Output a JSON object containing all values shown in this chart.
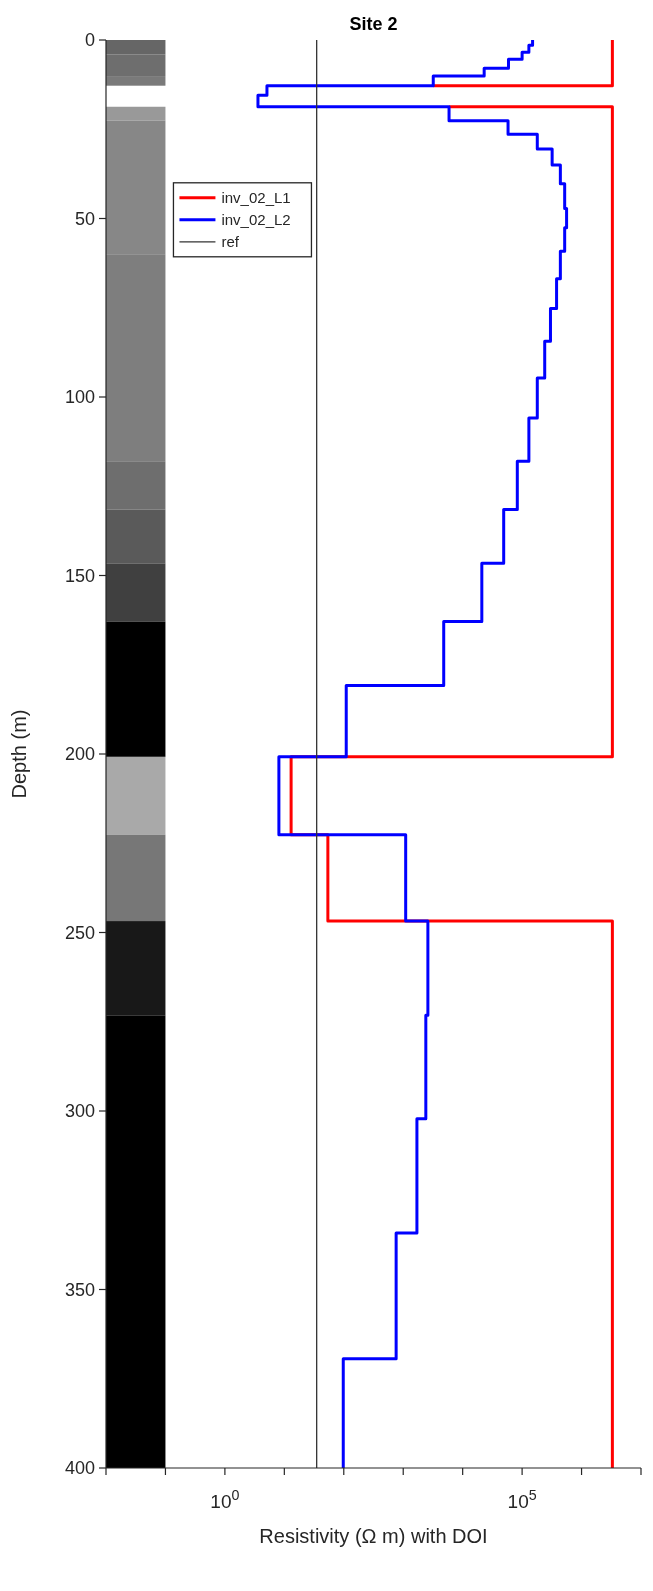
{
  "chart_data": {
    "type": "line",
    "title": "Site 2",
    "xlabel": "Resistivity (Ω m) with DOI",
    "ylabel": "Depth (m)",
    "log": "x",
    "xlim": [
      0.01,
      10000000
    ],
    "xticks": [
      {
        "value": 0.01,
        "label": null
      },
      {
        "value": 0.1,
        "label": null
      },
      {
        "value": 1,
        "label": "10$^{0}$"
      },
      {
        "value": 10,
        "label": null
      },
      {
        "value": 100,
        "label": null
      },
      {
        "value": 1000,
        "label": null
      },
      {
        "value": 10000,
        "label": null
      },
      {
        "value": 100000,
        "label": "10$^{5}$"
      },
      {
        "value": 1000000,
        "label": null
      },
      {
        "value": 10000000,
        "label": null
      }
    ],
    "ylim": [
      400,
      0
    ],
    "yticks": [
      0,
      50,
      100,
      150,
      200,
      250,
      300,
      350,
      400
    ],
    "grid": false,
    "legend": "top left",
    "line_style": "solid",
    "marker": "none",
    "series": [
      {
        "name": "inv_02_L1",
        "color": "#ff0000",
        "x": [
          3300000,
          3300000,
          3200,
          null,
          5900,
          3300000,
          3300000,
          13,
          13,
          54,
          54,
          3300000,
          3300000
        ],
        "values": [
          0,
          12.8,
          12.8,
          null,
          18.7,
          18.7,
          200.8,
          200.8,
          222.6,
          222.6,
          246.8,
          246.8,
          400
        ]
      },
      {
        "name": "inv_02_L2",
        "color": "#0000ff",
        "x": [
          150000,
          150000,
          130000,
          130000,
          100000,
          100000,
          59000,
          59000,
          23000,
          23000,
          3200,
          3200,
          5.1,
          5.1,
          3.6,
          3.6,
          5900,
          5900,
          58000,
          58000,
          180000,
          180000,
          320000,
          320000,
          440000,
          440000,
          520000,
          520000,
          560000,
          560000,
          520000,
          520000,
          440000,
          440000,
          380000,
          380000,
          300000,
          300000,
          240000,
          240000,
          180000,
          180000,
          130000,
          130000,
          83000,
          83000,
          49000,
          49000,
          21000,
          21000,
          4800,
          4800,
          110,
          110,
          8.1,
          8.1,
          1100,
          1100,
          2600,
          2600,
          2400,
          2400,
          1700,
          1700,
          760,
          760,
          98,
          98
        ],
        "values": [
          0,
          1.5,
          1.5,
          3.4,
          3.4,
          5.4,
          5.4,
          7.9,
          7.9,
          10.1,
          10.1,
          12.8,
          12.8,
          15.5,
          15.5,
          18.7,
          18.7,
          22.6,
          22.6,
          26.4,
          26.4,
          30.5,
          30.5,
          35,
          35,
          40.3,
          40.3,
          47.2,
          47.2,
          52.6,
          52.6,
          59.2,
          59.2,
          66.9,
          66.9,
          75.2,
          75.2,
          84.4,
          84.4,
          94.7,
          94.7,
          105.9,
          105.9,
          118,
          118,
          131.5,
          131.5,
          146.6,
          146.6,
          162.9,
          162.9,
          180.8,
          180.8,
          200.8,
          200.8,
          222.6,
          222.6,
          246.8,
          246.8,
          273.2,
          273.2,
          302.2,
          302.2,
          334.2,
          334.2,
          369.4,
          369.4,
          400
        ]
      },
      {
        "name": "ref",
        "color": "#333333",
        "x": [
          35,
          35
        ],
        "values": [
          0,
          400
        ]
      }
    ]
  }
}
